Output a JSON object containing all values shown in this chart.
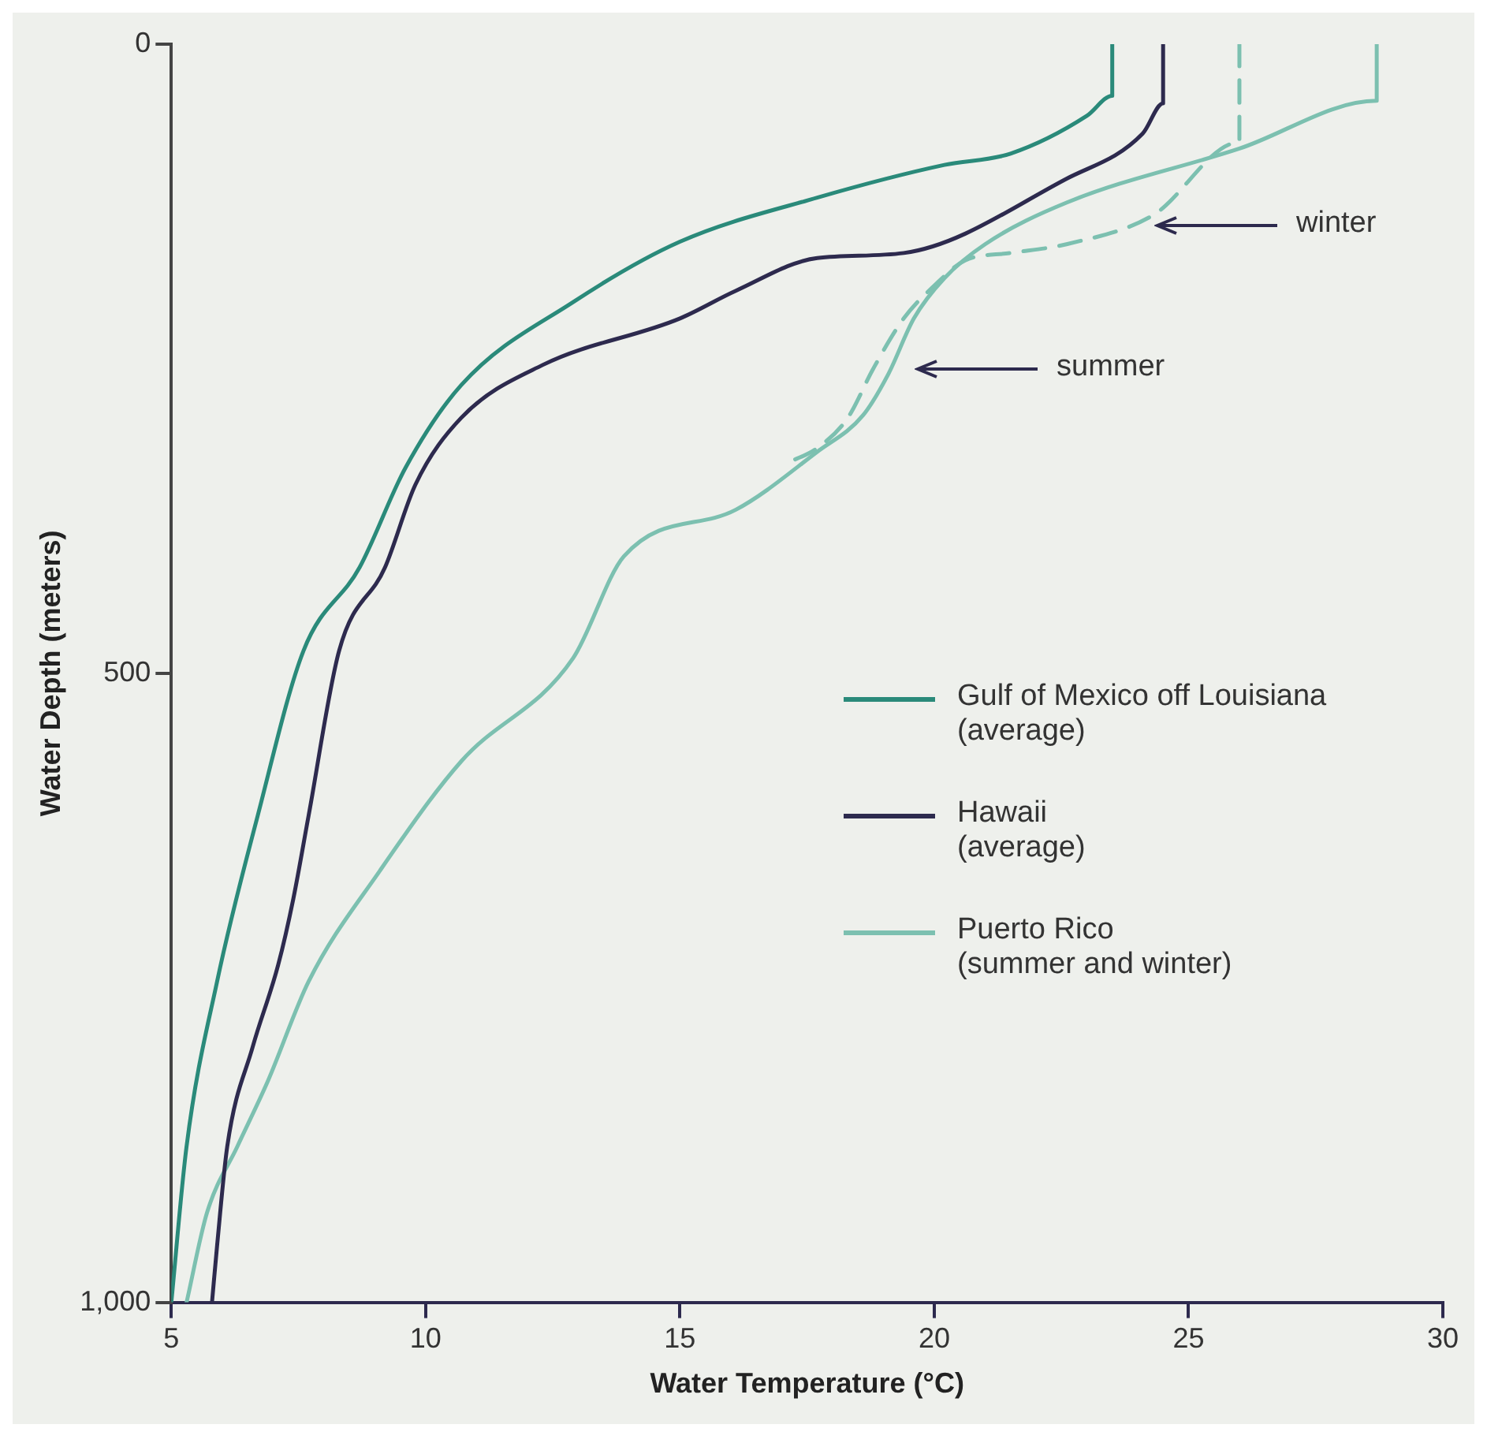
{
  "chart_data": {
    "type": "line",
    "xlabel": "Water Temperature (°C)",
    "ylabel": "Water Depth (meters)",
    "xlim": [
      5,
      30
    ],
    "xticks": [
      5,
      10,
      15,
      20,
      25,
      30
    ],
    "ylim": [
      1000,
      0
    ],
    "yticks": [
      0,
      500,
      {
        "value": 1000,
        "label": "1,000"
      }
    ],
    "legend": "bottom right",
    "marker": "none",
    "series": [
      {
        "name": "Gulf of Mexico off Louisiana\n(average)",
        "color": "#2a8a7a",
        "x": [
          23.5,
          23.5,
          23.0,
          21.5,
          20.2,
          17.7,
          15.0,
          12.9,
          10.7,
          9.6,
          8.7,
          7.6,
          6.7,
          5.9,
          5.3,
          5.0
        ],
        "values": [
          0,
          41,
          57,
          87,
          96,
          122,
          157,
          205,
          271,
          337,
          416,
          482,
          613,
          745,
          876,
          1000
        ]
      },
      {
        "name": "Hawaii\n(average)",
        "color": "#2d2a4e",
        "x": [
          24.5,
          24.5,
          24.1,
          22.6,
          19.4,
          17.7,
          16.1,
          15.0,
          12.3,
          10.7,
          9.8,
          9.2,
          8.3,
          7.7,
          7.4,
          7.1,
          6.6,
          6.1,
          5.9,
          5.8
        ],
        "values": [
          0,
          47,
          71,
          107,
          166,
          170,
          196,
          218,
          255,
          297,
          350,
          416,
          482,
          613,
          679,
          732,
          797,
          876,
          955,
          1000
        ]
      },
      {
        "name": "Puerto Rico\n(summer and winter)",
        "color": "#7cc0b0",
        "x": [
          28.7,
          28.7,
          26.0,
          22.6,
          21.0,
          20.2,
          19.6,
          19.1,
          18.6,
          17.7,
          16.1,
          13.9,
          12.9,
          10.7,
          9.1,
          7.7,
          6.9,
          6.3,
          5.7,
          5.3
        ],
        "values": [
          0,
          45,
          83,
          126,
          159,
          186,
          218,
          262,
          295,
          324,
          370,
          407,
          488,
          570,
          657,
          745,
          824,
          876,
          929,
          1000
        ]
      },
      {
        "color": "#7cc0b0",
        "line_style": "dashed",
        "x": [
          26.0,
          26.0,
          24.3,
          22.6,
          21.5,
          20.6,
          20.0,
          19.4,
          18.8,
          18.3,
          17.7,
          17.1
        ],
        "values": [
          0,
          78,
          136,
          159,
          166,
          172,
          192,
          218,
          258,
          297,
          321,
          333
        ]
      }
    ],
    "annotations": [
      "winter",
      "summer"
    ]
  }
}
